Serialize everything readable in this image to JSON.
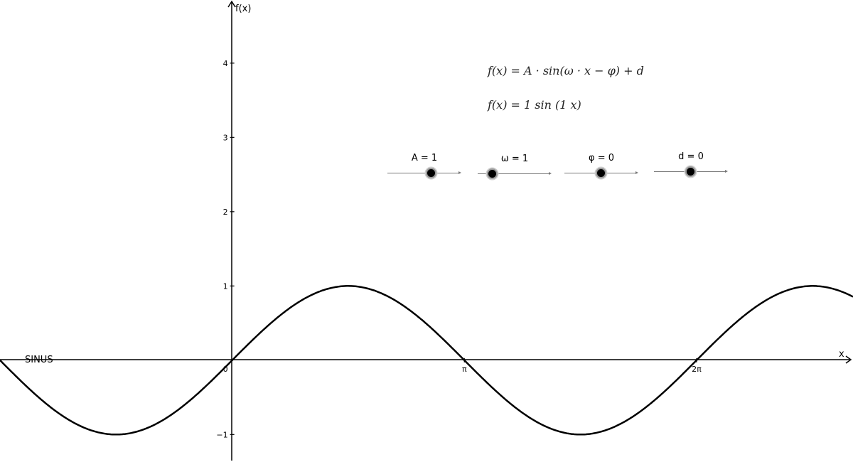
{
  "chart_data": {
    "type": "line",
    "title": "",
    "xlabel": "x",
    "ylabel": "f(x)",
    "xlim": [
      -3.14159,
      8.4
    ],
    "ylim": [
      -1.37,
      4.85
    ],
    "x_ticks": [
      {
        "value": 0,
        "label": "0"
      },
      {
        "value": 3.14159,
        "label": "π"
      },
      {
        "value": 6.28319,
        "label": "2π"
      }
    ],
    "y_ticks": [
      {
        "value": -1,
        "label": "−1"
      },
      {
        "value": 1,
        "label": "1"
      },
      {
        "value": 2,
        "label": "2"
      },
      {
        "value": 3,
        "label": "3"
      },
      {
        "value": 4,
        "label": "4"
      }
    ],
    "grid": false,
    "series": [
      {
        "function": "f(x) = A·sin(ω·x − φ) + d",
        "A": 1,
        "omega": 1,
        "phi": 0,
        "d": 0
      }
    ]
  },
  "curve_label": "SINUS",
  "formulas": {
    "general": "f(x) = A · sin(ω · x − φ) + d",
    "current": "f(x) = 1  sin (1 x)"
  },
  "sliders": [
    {
      "name": "A",
      "label": "A = 1",
      "min": -5,
      "max": 5,
      "value": 1
    },
    {
      "name": "omega",
      "label": "ω = 1",
      "min": 0,
      "max": 5,
      "value": 1
    },
    {
      "name": "phi",
      "label": "φ = 0",
      "min": -5,
      "max": 5,
      "value": 0
    },
    {
      "name": "d",
      "label": "d = 0",
      "min": -5,
      "max": 5,
      "value": 0
    }
  ]
}
